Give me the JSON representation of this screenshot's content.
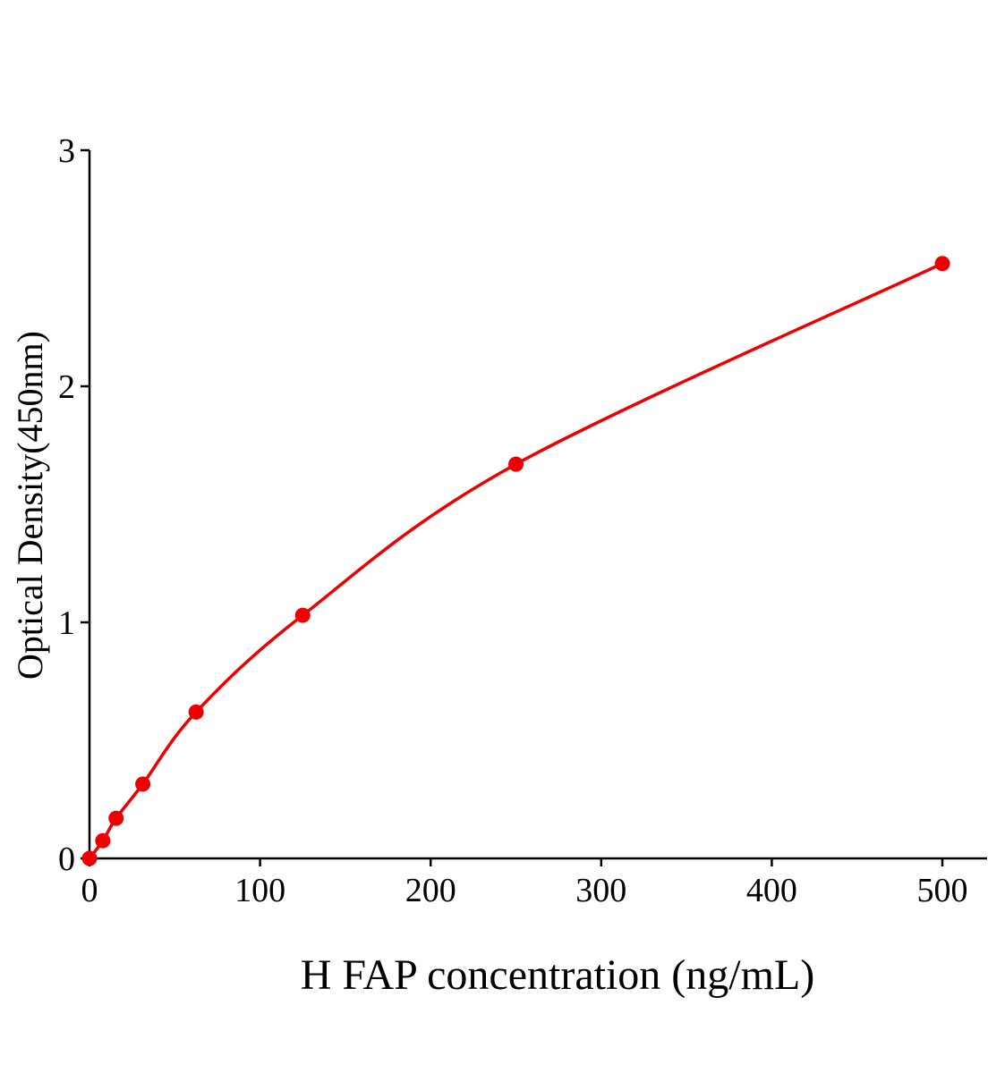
{
  "chart_data": {
    "type": "scatter",
    "title": "",
    "xlabel": "H FAP concentration (ng/mL)",
    "ylabel": "Optical Density(450nm)",
    "xlim": [
      0,
      525
    ],
    "ylim": [
      0,
      3
    ],
    "xticks": [
      0,
      100,
      200,
      300,
      400,
      500
    ],
    "yticks": [
      0,
      1,
      2,
      3
    ],
    "grid": false,
    "legend": "none",
    "series": [
      {
        "x": [
          0,
          7.8,
          15.6,
          31.25,
          62.5,
          125,
          250,
          500
        ],
        "y": [
          0.0,
          0.075,
          0.17,
          0.315,
          0.62,
          1.03,
          1.67,
          2.52
        ],
        "color": "#ee0000",
        "marker": "circle",
        "fit_line": true
      }
    ]
  }
}
